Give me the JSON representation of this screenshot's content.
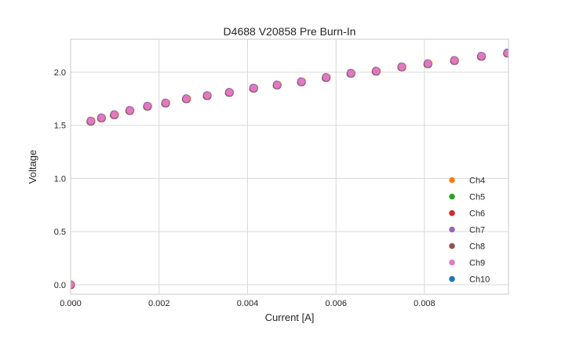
{
  "style": {
    "background": "#ffffff",
    "grid_color": "#d9d9d9",
    "spine_color": "#c9c9c9",
    "text_color": "#262626"
  },
  "chart_data": {
    "type": "scatter",
    "title": "D4688 V20858 Pre Burn-In",
    "xlabel": "Current [A]",
    "ylabel": "Voltage",
    "xlim": [
      0,
      0.0099
    ],
    "ylim": [
      -0.09,
      2.31
    ],
    "xticks": [
      0,
      0.002,
      0.004,
      0.006,
      0.008
    ],
    "xtick_labels": [
      "0.000",
      "0.002",
      "0.004",
      "0.006",
      "0.008"
    ],
    "yticks": [
      0,
      0.5,
      1.0,
      1.5,
      2.0
    ],
    "ytick_labels": [
      "0.0",
      "0.5",
      "1.0",
      "1.5",
      "2.0"
    ],
    "grid": true,
    "legend_position": "lower right",
    "x": [
      0.0,
      0.00046,
      0.0007,
      0.00099,
      0.00134,
      0.00174,
      0.00215,
      0.00262,
      0.00309,
      0.00359,
      0.00414,
      0.00467,
      0.00522,
      0.00578,
      0.00634,
      0.00691,
      0.00749,
      0.00808,
      0.00868,
      0.00929,
      0.00988
    ],
    "series": [
      {
        "name": "Ch4",
        "color": "#ff7f0e",
        "y": [
          0.0,
          1.54,
          1.57,
          1.6,
          1.64,
          1.68,
          1.71,
          1.75,
          1.78,
          1.81,
          1.85,
          1.88,
          1.91,
          1.95,
          1.99,
          2.01,
          2.05,
          2.08,
          2.11,
          2.15,
          2.18
        ]
      },
      {
        "name": "Ch5",
        "color": "#2ca02c",
        "y": [
          0.0,
          1.54,
          1.57,
          1.6,
          1.64,
          1.68,
          1.71,
          1.75,
          1.78,
          1.81,
          1.85,
          1.88,
          1.91,
          1.95,
          1.99,
          2.01,
          2.05,
          2.08,
          2.11,
          2.15,
          2.18
        ]
      },
      {
        "name": "Ch6",
        "color": "#d62728",
        "y": [
          0.0,
          1.54,
          1.57,
          1.6,
          1.64,
          1.68,
          1.71,
          1.75,
          1.78,
          1.81,
          1.85,
          1.88,
          1.91,
          1.95,
          1.99,
          2.01,
          2.05,
          2.08,
          2.11,
          2.15,
          2.18
        ]
      },
      {
        "name": "Ch7",
        "color": "#9467bd",
        "y": [
          0.0,
          1.54,
          1.57,
          1.6,
          1.64,
          1.68,
          1.71,
          1.75,
          1.78,
          1.81,
          1.85,
          1.88,
          1.91,
          1.95,
          1.99,
          2.01,
          2.05,
          2.08,
          2.11,
          2.15,
          2.18
        ]
      },
      {
        "name": "Ch8",
        "color": "#8c564b",
        "y": [
          0.0,
          1.54,
          1.57,
          1.6,
          1.64,
          1.68,
          1.71,
          1.75,
          1.78,
          1.81,
          1.85,
          1.88,
          1.91,
          1.95,
          1.99,
          2.01,
          2.05,
          2.08,
          2.11,
          2.15,
          2.18
        ]
      },
      {
        "name": "Ch9",
        "color": "#e377c2",
        "y": [
          0.0,
          1.54,
          1.57,
          1.6,
          1.64,
          1.68,
          1.71,
          1.75,
          1.78,
          1.81,
          1.85,
          1.88,
          1.91,
          1.95,
          1.99,
          2.01,
          2.05,
          2.08,
          2.11,
          2.15,
          2.18
        ]
      },
      {
        "name": "Ch10",
        "color": "#1f77b4",
        "y": [
          0.0,
          1.54,
          1.57,
          1.6,
          1.64,
          1.68,
          1.71,
          1.75,
          1.78,
          1.81,
          1.85,
          1.88,
          1.91,
          1.95,
          1.99,
          2.01,
          2.05,
          2.08,
          2.11,
          2.15,
          2.18
        ]
      }
    ],
    "series_note": "All channel curves are coincident at this scale; Ch9 (pink) markers are rendered on top."
  }
}
